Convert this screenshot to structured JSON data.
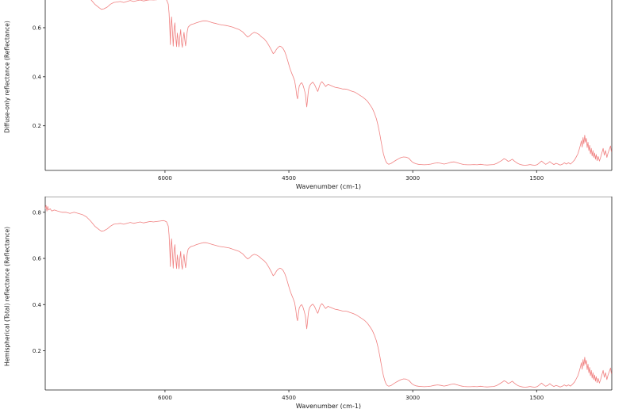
{
  "chart_data": {
    "type": "line",
    "xlabel": "Wavenumber (cm-1)",
    "x_ticks": [
      6000,
      4500,
      3000,
      1500
    ],
    "x_axis": {
      "reversed": true,
      "range": [
        7450,
        590
      ]
    },
    "line_color": "#f08080",
    "charts": [
      {
        "ylabel": "Diffuse-only reflectance (Reflectance)",
        "y_ticks": [
          0.2,
          0.4,
          0.6
        ],
        "ylim": [
          0.018,
          0.713
        ],
        "values_key": "diffuse_values"
      },
      {
        "ylabel": "Hemispherical (Total) reflectance (Reflectance)",
        "y_ticks": [
          0.2,
          0.4,
          0.6,
          0.8
        ],
        "ylim": [
          0.03,
          0.868
        ],
        "values_key": "total_values"
      }
    ],
    "x": [
      7450,
      7440,
      7430,
      7420,
      7410,
      7390,
      7370,
      7340,
      7300,
      7250,
      7200,
      7150,
      7100,
      7050,
      7000,
      6950,
      6900,
      6850,
      6800,
      6770,
      6740,
      6700,
      6660,
      6620,
      6580,
      6540,
      6500,
      6460,
      6420,
      6380,
      6340,
      6300,
      6260,
      6220,
      6180,
      6140,
      6100,
      6060,
      6020,
      6000,
      5980,
      5960,
      5950,
      5940,
      5935,
      5930,
      5920,
      5910,
      5900,
      5890,
      5880,
      5870,
      5860,
      5850,
      5840,
      5830,
      5820,
      5810,
      5800,
      5790,
      5780,
      5770,
      5760,
      5750,
      5740,
      5730,
      5720,
      5700,
      5680,
      5650,
      5620,
      5580,
      5540,
      5500,
      5460,
      5420,
      5380,
      5340,
      5300,
      5260,
      5220,
      5180,
      5140,
      5100,
      5060,
      5020,
      5000,
      4980,
      4950,
      4920,
      4890,
      4860,
      4830,
      4800,
      4770,
      4740,
      4710,
      4690,
      4670,
      4650,
      4630,
      4610,
      4590,
      4570,
      4550,
      4530,
      4510,
      4490,
      4470,
      4450,
      4430,
      4415,
      4405,
      4395,
      4385,
      4375,
      4360,
      4345,
      4330,
      4315,
      4300,
      4290,
      4283,
      4276,
      4268,
      4260,
      4250,
      4240,
      4225,
      4210,
      4195,
      4180,
      4165,
      4150,
      4140,
      4130,
      4120,
      4110,
      4100,
      4085,
      4070,
      4055,
      4040,
      4025,
      4010,
      3995,
      3970,
      3940,
      3910,
      3880,
      3850,
      3820,
      3790,
      3760,
      3730,
      3700,
      3670,
      3640,
      3610,
      3580,
      3550,
      3520,
      3490,
      3465,
      3440,
      3420,
      3400,
      3385,
      3370,
      3355,
      3340,
      3325,
      3310,
      3290,
      3260,
      3230,
      3200,
      3170,
      3140,
      3110,
      3080,
      3050,
      3030,
      3010,
      2990,
      2960,
      2930,
      2900,
      2860,
      2820,
      2780,
      2740,
      2700,
      2660,
      2620,
      2580,
      2540,
      2500,
      2460,
      2420,
      2380,
      2340,
      2300,
      2260,
      2220,
      2180,
      2140,
      2100,
      2060,
      2020,
      1980,
      1950,
      1920,
      1895,
      1870,
      1845,
      1820,
      1795,
      1770,
      1745,
      1720,
      1695,
      1670,
      1640,
      1610,
      1580,
      1550,
      1520,
      1490,
      1465,
      1440,
      1415,
      1390,
      1365,
      1340,
      1315,
      1290,
      1265,
      1240,
      1215,
      1190,
      1165,
      1140,
      1115,
      1090,
      1065,
      1040,
      1020,
      1000,
      985,
      970,
      958,
      948,
      938,
      928,
      918,
      908,
      898,
      888,
      878,
      868,
      858,
      848,
      838,
      828,
      818,
      808,
      798,
      788,
      778,
      768,
      755,
      740,
      725,
      710,
      695,
      680,
      665,
      650,
      635,
      620,
      605,
      595
    ],
    "total_values": [
      0.815,
      0.83,
      0.805,
      0.825,
      0.81,
      0.815,
      0.805,
      0.81,
      0.805,
      0.8,
      0.8,
      0.795,
      0.8,
      0.795,
      0.79,
      0.78,
      0.762,
      0.74,
      0.725,
      0.718,
      0.72,
      0.728,
      0.74,
      0.748,
      0.75,
      0.752,
      0.748,
      0.752,
      0.756,
      0.752,
      0.755,
      0.758,
      0.754,
      0.757,
      0.76,
      0.758,
      0.76,
      0.762,
      0.764,
      0.762,
      0.758,
      0.74,
      0.7,
      0.62,
      0.565,
      0.64,
      0.685,
      0.625,
      0.558,
      0.63,
      0.66,
      0.6,
      0.556,
      0.615,
      0.585,
      0.555,
      0.6,
      0.63,
      0.575,
      0.553,
      0.59,
      0.618,
      0.585,
      0.56,
      0.595,
      0.622,
      0.64,
      0.648,
      0.652,
      0.655,
      0.66,
      0.664,
      0.668,
      0.668,
      0.664,
      0.66,
      0.656,
      0.652,
      0.65,
      0.648,
      0.645,
      0.64,
      0.635,
      0.63,
      0.62,
      0.605,
      0.598,
      0.602,
      0.612,
      0.618,
      0.615,
      0.608,
      0.598,
      0.59,
      0.578,
      0.56,
      0.54,
      0.525,
      0.532,
      0.545,
      0.553,
      0.558,
      0.555,
      0.548,
      0.535,
      0.515,
      0.49,
      0.465,
      0.445,
      0.428,
      0.408,
      0.375,
      0.345,
      0.33,
      0.36,
      0.385,
      0.395,
      0.4,
      0.39,
      0.372,
      0.35,
      0.315,
      0.295,
      0.32,
      0.35,
      0.372,
      0.385,
      0.392,
      0.398,
      0.402,
      0.395,
      0.385,
      0.372,
      0.362,
      0.372,
      0.385,
      0.395,
      0.4,
      0.404,
      0.398,
      0.39,
      0.383,
      0.388,
      0.393,
      0.39,
      0.388,
      0.384,
      0.38,
      0.378,
      0.375,
      0.372,
      0.372,
      0.37,
      0.366,
      0.362,
      0.358,
      0.352,
      0.345,
      0.338,
      0.33,
      0.32,
      0.305,
      0.288,
      0.268,
      0.243,
      0.215,
      0.18,
      0.148,
      0.118,
      0.092,
      0.072,
      0.058,
      0.05,
      0.046,
      0.05,
      0.057,
      0.064,
      0.07,
      0.075,
      0.078,
      0.077,
      0.072,
      0.065,
      0.057,
      0.052,
      0.048,
      0.046,
      0.045,
      0.044,
      0.045,
      0.047,
      0.05,
      0.052,
      0.05,
      0.047,
      0.05,
      0.054,
      0.056,
      0.052,
      0.048,
      0.045,
      0.044,
      0.044,
      0.045,
      0.044,
      0.046,
      0.044,
      0.043,
      0.044,
      0.045,
      0.05,
      0.056,
      0.063,
      0.07,
      0.066,
      0.058,
      0.062,
      0.068,
      0.06,
      0.053,
      0.048,
      0.045,
      0.043,
      0.042,
      0.043,
      0.045,
      0.043,
      0.042,
      0.045,
      0.052,
      0.06,
      0.052,
      0.046,
      0.05,
      0.057,
      0.05,
      0.045,
      0.05,
      0.047,
      0.043,
      0.046,
      0.052,
      0.047,
      0.052,
      0.047,
      0.055,
      0.065,
      0.078,
      0.092,
      0.11,
      0.128,
      0.148,
      0.12,
      0.162,
      0.135,
      0.172,
      0.142,
      0.158,
      0.118,
      0.142,
      0.105,
      0.128,
      0.092,
      0.115,
      0.082,
      0.105,
      0.075,
      0.095,
      0.068,
      0.088,
      0.062,
      0.08,
      0.06,
      0.075,
      0.095,
      0.115,
      0.085,
      0.105,
      0.075,
      0.095,
      0.11,
      0.125,
      0.1
    ],
    "diffuse_values": [
      0.766,
      0.78,
      0.757,
      0.776,
      0.761,
      0.766,
      0.757,
      0.761,
      0.757,
      0.752,
      0.752,
      0.747,
      0.752,
      0.747,
      0.743,
      0.733,
      0.716,
      0.696,
      0.682,
      0.675,
      0.677,
      0.684,
      0.696,
      0.703,
      0.705,
      0.707,
      0.703,
      0.707,
      0.711,
      0.707,
      0.71,
      0.713,
      0.709,
      0.712,
      0.714,
      0.713,
      0.714,
      0.716,
      0.718,
      0.716,
      0.713,
      0.696,
      0.658,
      0.583,
      0.531,
      0.602,
      0.644,
      0.588,
      0.525,
      0.592,
      0.62,
      0.564,
      0.523,
      0.578,
      0.55,
      0.522,
      0.564,
      0.592,
      0.541,
      0.52,
      0.555,
      0.581,
      0.55,
      0.526,
      0.559,
      0.585,
      0.602,
      0.609,
      0.613,
      0.616,
      0.62,
      0.624,
      0.628,
      0.628,
      0.624,
      0.62,
      0.617,
      0.613,
      0.611,
      0.609,
      0.606,
      0.602,
      0.597,
      0.592,
      0.583,
      0.569,
      0.562,
      0.566,
      0.575,
      0.581,
      0.578,
      0.572,
      0.562,
      0.555,
      0.543,
      0.526,
      0.508,
      0.494,
      0.5,
      0.512,
      0.52,
      0.525,
      0.522,
      0.515,
      0.503,
      0.484,
      0.461,
      0.437,
      0.418,
      0.402,
      0.384,
      0.353,
      0.324,
      0.31,
      0.338,
      0.362,
      0.371,
      0.376,
      0.367,
      0.35,
      0.329,
      0.296,
      0.277,
      0.301,
      0.329,
      0.35,
      0.362,
      0.368,
      0.374,
      0.378,
      0.371,
      0.362,
      0.35,
      0.34,
      0.35,
      0.362,
      0.371,
      0.376,
      0.38,
      0.374,
      0.367,
      0.36,
      0.365,
      0.369,
      0.367,
      0.365,
      0.361,
      0.357,
      0.355,
      0.353,
      0.35,
      0.35,
      0.348,
      0.344,
      0.34,
      0.337,
      0.331,
      0.324,
      0.318,
      0.31,
      0.301,
      0.287,
      0.271,
      0.252,
      0.228,
      0.202,
      0.169,
      0.139,
      0.111,
      0.086,
      0.068,
      0.055,
      0.047,
      0.043,
      0.047,
      0.054,
      0.06,
      0.066,
      0.071,
      0.073,
      0.072,
      0.068,
      0.061,
      0.054,
      0.049,
      0.045,
      0.043,
      0.042,
      0.041,
      0.042,
      0.044,
      0.047,
      0.049,
      0.047,
      0.044,
      0.047,
      0.051,
      0.053,
      0.049,
      0.045,
      0.042,
      0.041,
      0.041,
      0.042,
      0.041,
      0.043,
      0.041,
      0.04,
      0.041,
      0.042,
      0.047,
      0.053,
      0.059,
      0.066,
      0.062,
      0.055,
      0.058,
      0.064,
      0.056,
      0.05,
      0.045,
      0.042,
      0.04,
      0.039,
      0.04,
      0.042,
      0.04,
      0.039,
      0.042,
      0.049,
      0.056,
      0.049,
      0.043,
      0.047,
      0.054,
      0.047,
      0.042,
      0.047,
      0.044,
      0.04,
      0.043,
      0.049,
      0.044,
      0.049,
      0.044,
      0.052,
      0.061,
      0.073,
      0.086,
      0.103,
      0.12,
      0.139,
      0.113,
      0.152,
      0.127,
      0.162,
      0.133,
      0.149,
      0.111,
      0.133,
      0.099,
      0.12,
      0.086,
      0.108,
      0.077,
      0.099,
      0.071,
      0.089,
      0.064,
      0.083,
      0.058,
      0.075,
      0.056,
      0.071,
      0.089,
      0.108,
      0.08,
      0.099,
      0.071,
      0.089,
      0.103,
      0.118,
      0.094
    ]
  }
}
